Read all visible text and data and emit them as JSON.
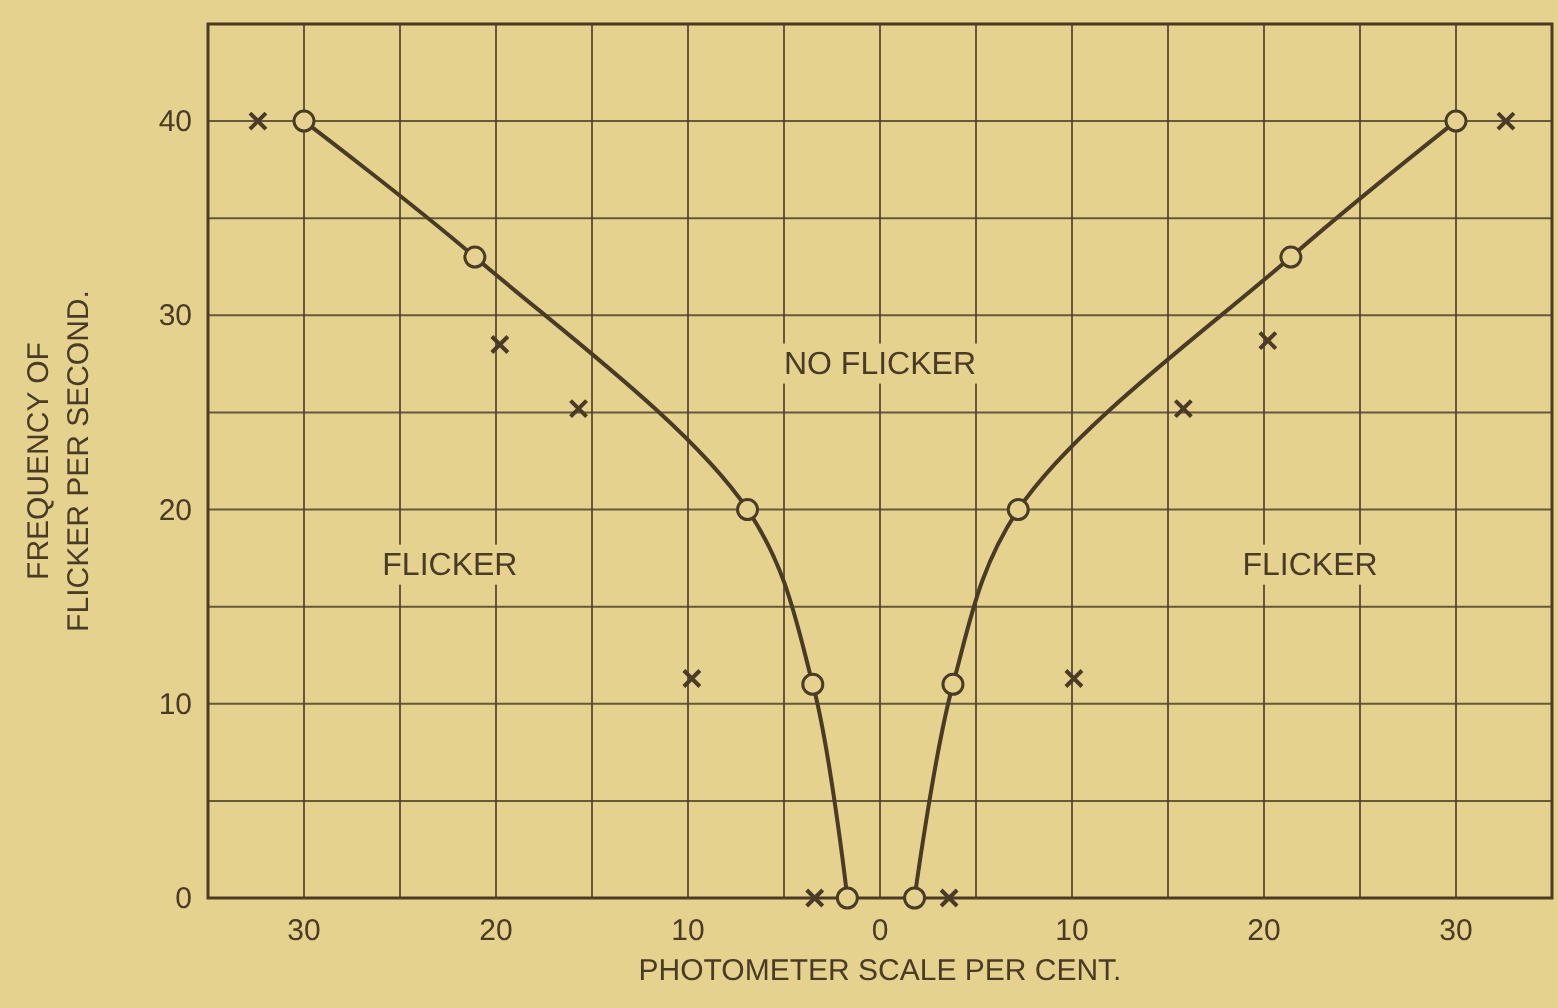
{
  "chart_data": {
    "type": "line",
    "xlabel": "PHOTOMETER SCALE PER CENT.",
    "ylabel": "FREQUENCY OF\nFLICKER PER SECOND.",
    "annotations": [
      "NO FLICKER",
      "FLICKER",
      "FLICKER"
    ],
    "series": [
      {
        "color": "#4a3a26",
        "marker": "circle",
        "x": [
          -30,
          -21.1,
          -6.9,
          -3.5,
          -1.7
        ],
        "values": [
          40,
          33,
          20,
          11,
          0
        ]
      },
      {
        "color": "#4a3a26",
        "marker": "circle",
        "x": [
          30,
          21.4,
          7.2,
          3.8,
          1.8
        ],
        "values": [
          40,
          33,
          20,
          11,
          0
        ]
      },
      {
        "type": "scatter",
        "color": "#4a3a26",
        "marker": "cross",
        "x": [
          -32.4,
          -19.8,
          -15.7,
          -9.8,
          -3.4,
          32.6,
          20.2,
          15.8,
          10.1,
          3.6
        ],
        "values": [
          40,
          28.5,
          25.2,
          11.3,
          0,
          40,
          28.7,
          25.2,
          11.3,
          0
        ]
      }
    ],
    "xlim": [
      -35,
      35
    ],
    "xticks": [
      {
        "value": -35,
        "label": null
      },
      {
        "value": -30,
        "label": "30"
      },
      {
        "value": -25,
        "label": null
      },
      {
        "value": -20,
        "label": "20"
      },
      {
        "value": -15,
        "label": null
      },
      {
        "value": -10,
        "label": "10"
      },
      {
        "value": -5,
        "label": null
      },
      0,
      {
        "value": 5,
        "label": null
      },
      10,
      {
        "value": 15,
        "label": null
      },
      20,
      {
        "value": 25,
        "label": null
      },
      30,
      {
        "value": 35,
        "label": null
      }
    ],
    "ylim": [
      0,
      45
    ],
    "yticks": [
      0,
      {
        "value": 5,
        "label": null
      },
      10,
      {
        "value": 15,
        "label": null
      },
      20,
      {
        "value": 25,
        "label": null
      },
      30,
      {
        "value": 35,
        "label": null
      },
      40,
      {
        "value": 45,
        "label": null
      }
    ],
    "grid": true
  }
}
